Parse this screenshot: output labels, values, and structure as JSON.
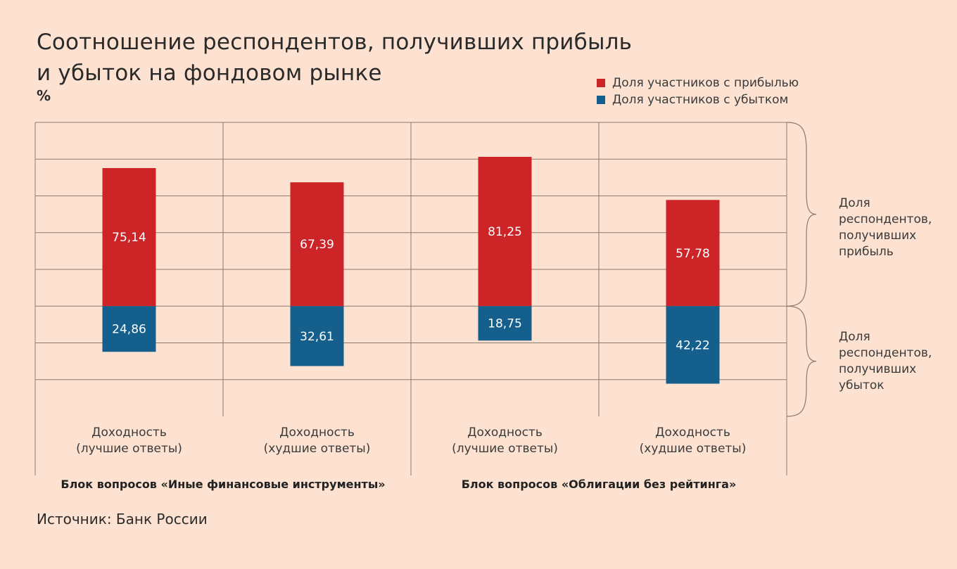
{
  "title_line1": "Соотношение респондентов, получивших прибыль",
  "title_line2": "и убыток на фондовом рынке",
  "unit": "%",
  "source": "Источник: Банк России",
  "colors": {
    "profit": "#cd2427",
    "loss": "#155f8c",
    "grid": "#8a7a72",
    "background": "#fde2d2"
  },
  "chart_data": {
    "type": "bar",
    "stacking": "diverging",
    "grid": true,
    "legend_position": "top-right",
    "categories": [
      [
        "Доходность",
        "(лучшие ответы)"
      ],
      [
        "Доходность",
        "(худшие ответы)"
      ],
      [
        "Доходность",
        "(лучшие ответы)"
      ],
      [
        "Доходность",
        "(худшие ответы)"
      ]
    ],
    "groups": [
      {
        "label": "Блок вопросов «Иные финансовые инструменты»"
      },
      {
        "label": "Блок вопросов «Облигации без рейтинга»"
      }
    ],
    "series": [
      {
        "name": "Доля участников с прибылью",
        "values": [
          75.14,
          67.39,
          81.25,
          57.78
        ],
        "labels": [
          "75,14",
          "67,39",
          "81,25",
          "57,78"
        ]
      },
      {
        "name": "Доля участников с убытком",
        "values": [
          24.86,
          32.61,
          18.75,
          42.22
        ],
        "labels": [
          "24,86",
          "32,61",
          "18,75",
          "42,22"
        ]
      }
    ],
    "ylim": [
      -60,
      100
    ],
    "brace_labels": [
      [
        "Доля",
        "респондентов,",
        "получивших",
        "прибыль"
      ],
      [
        "Доля",
        "респондентов,",
        "получивших",
        "убыток"
      ]
    ]
  }
}
